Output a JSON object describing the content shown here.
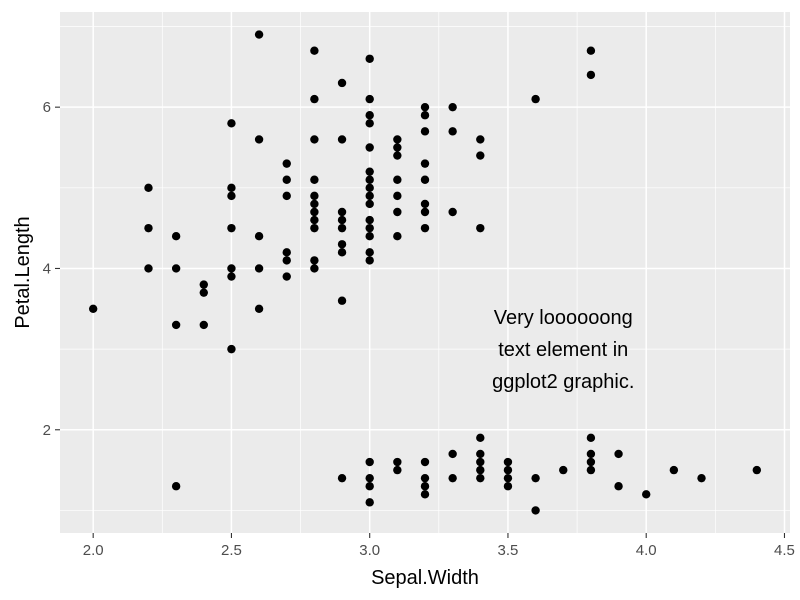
{
  "chart_data": {
    "type": "scatter",
    "xlabel": "Sepal.Width",
    "ylabel": "Petal.Length",
    "xlim": [
      1.88,
      4.52
    ],
    "ylim": [
      0.72,
      7.18
    ],
    "x_ticks": [
      2.0,
      2.5,
      3.0,
      3.5,
      4.0,
      4.5
    ],
    "x_tick_labels": [
      "2.0",
      "2.5",
      "3.0",
      "3.5",
      "4.0",
      "4.5"
    ],
    "y_ticks": [
      2,
      4,
      6
    ],
    "y_tick_labels": [
      "2",
      "4",
      "6"
    ],
    "grid": true,
    "background": "#ebebeb",
    "gridline_color": "#ffffff",
    "point_color": "#000000",
    "annotation": {
      "lines": [
        "Very loooooong",
        "text element in",
        "ggplot2 graphic."
      ],
      "x": 3.7,
      "y": 3.0
    },
    "points": [
      [
        2.0,
        3.5
      ],
      [
        2.2,
        5.0
      ],
      [
        2.2,
        4.5
      ],
      [
        2.2,
        4.0
      ],
      [
        2.3,
        4.4
      ],
      [
        2.3,
        4.0
      ],
      [
        2.3,
        3.3
      ],
      [
        2.3,
        1.3
      ],
      [
        2.4,
        3.8
      ],
      [
        2.4,
        3.7
      ],
      [
        2.4,
        3.3
      ],
      [
        2.5,
        5.8
      ],
      [
        2.5,
        5.0
      ],
      [
        2.5,
        4.9
      ],
      [
        2.5,
        4.5
      ],
      [
        2.5,
        4.0
      ],
      [
        2.5,
        3.9
      ],
      [
        2.5,
        3.0
      ],
      [
        2.6,
        6.9
      ],
      [
        2.6,
        5.6
      ],
      [
        2.6,
        4.4
      ],
      [
        2.6,
        4.0
      ],
      [
        2.6,
        3.5
      ],
      [
        2.7,
        5.3
      ],
      [
        2.7,
        5.1
      ],
      [
        2.7,
        4.9
      ],
      [
        2.7,
        4.2
      ],
      [
        2.7,
        4.1
      ],
      [
        2.7,
        3.9
      ],
      [
        2.8,
        6.7
      ],
      [
        2.8,
        6.1
      ],
      [
        2.8,
        5.6
      ],
      [
        2.8,
        5.1
      ],
      [
        2.8,
        4.9
      ],
      [
        2.8,
        4.8
      ],
      [
        2.8,
        4.7
      ],
      [
        2.8,
        4.6
      ],
      [
        2.8,
        4.5
      ],
      [
        2.8,
        4.1
      ],
      [
        2.8,
        4.0
      ],
      [
        2.9,
        6.3
      ],
      [
        2.9,
        5.6
      ],
      [
        2.9,
        4.7
      ],
      [
        2.9,
        4.6
      ],
      [
        2.9,
        4.5
      ],
      [
        2.9,
        4.3
      ],
      [
        2.9,
        4.2
      ],
      [
        2.9,
        3.6
      ],
      [
        2.9,
        1.4
      ],
      [
        3.0,
        6.6
      ],
      [
        3.0,
        6.1
      ],
      [
        3.0,
        5.9
      ],
      [
        3.0,
        5.8
      ],
      [
        3.0,
        5.5
      ],
      [
        3.0,
        5.2
      ],
      [
        3.0,
        5.1
      ],
      [
        3.0,
        5.0
      ],
      [
        3.0,
        4.9
      ],
      [
        3.0,
        4.8
      ],
      [
        3.0,
        4.6
      ],
      [
        3.0,
        4.5
      ],
      [
        3.0,
        4.4
      ],
      [
        3.0,
        4.2
      ],
      [
        3.0,
        4.1
      ],
      [
        3.0,
        1.6
      ],
      [
        3.0,
        1.4
      ],
      [
        3.0,
        1.3
      ],
      [
        3.0,
        1.1
      ],
      [
        3.1,
        5.6
      ],
      [
        3.1,
        5.5
      ],
      [
        3.1,
        5.4
      ],
      [
        3.1,
        5.1
      ],
      [
        3.1,
        4.9
      ],
      [
        3.1,
        4.7
      ],
      [
        3.1,
        4.4
      ],
      [
        3.1,
        1.6
      ],
      [
        3.1,
        1.5
      ],
      [
        3.2,
        6.0
      ],
      [
        3.2,
        5.9
      ],
      [
        3.2,
        5.7
      ],
      [
        3.2,
        5.3
      ],
      [
        3.2,
        5.1
      ],
      [
        3.2,
        4.8
      ],
      [
        3.2,
        4.7
      ],
      [
        3.2,
        4.5
      ],
      [
        3.2,
        1.6
      ],
      [
        3.2,
        1.4
      ],
      [
        3.2,
        1.3
      ],
      [
        3.2,
        1.2
      ],
      [
        3.3,
        6.0
      ],
      [
        3.3,
        5.7
      ],
      [
        3.3,
        4.7
      ],
      [
        3.3,
        1.7
      ],
      [
        3.3,
        1.4
      ],
      [
        3.4,
        5.6
      ],
      [
        3.4,
        5.4
      ],
      [
        3.4,
        4.5
      ],
      [
        3.4,
        1.9
      ],
      [
        3.4,
        1.7
      ],
      [
        3.4,
        1.6
      ],
      [
        3.4,
        1.5
      ],
      [
        3.4,
        1.4
      ],
      [
        3.5,
        1.6
      ],
      [
        3.5,
        1.5
      ],
      [
        3.5,
        1.4
      ],
      [
        3.5,
        1.3
      ],
      [
        3.6,
        6.1
      ],
      [
        3.6,
        1.4
      ],
      [
        3.6,
        1.0
      ],
      [
        3.7,
        1.5
      ],
      [
        3.8,
        6.7
      ],
      [
        3.8,
        6.4
      ],
      [
        3.8,
        1.9
      ],
      [
        3.8,
        1.7
      ],
      [
        3.8,
        1.6
      ],
      [
        3.8,
        1.5
      ],
      [
        3.9,
        1.7
      ],
      [
        3.9,
        1.3
      ],
      [
        4.0,
        1.2
      ],
      [
        4.1,
        1.5
      ],
      [
        4.2,
        1.4
      ],
      [
        4.4,
        1.5
      ]
    ]
  }
}
